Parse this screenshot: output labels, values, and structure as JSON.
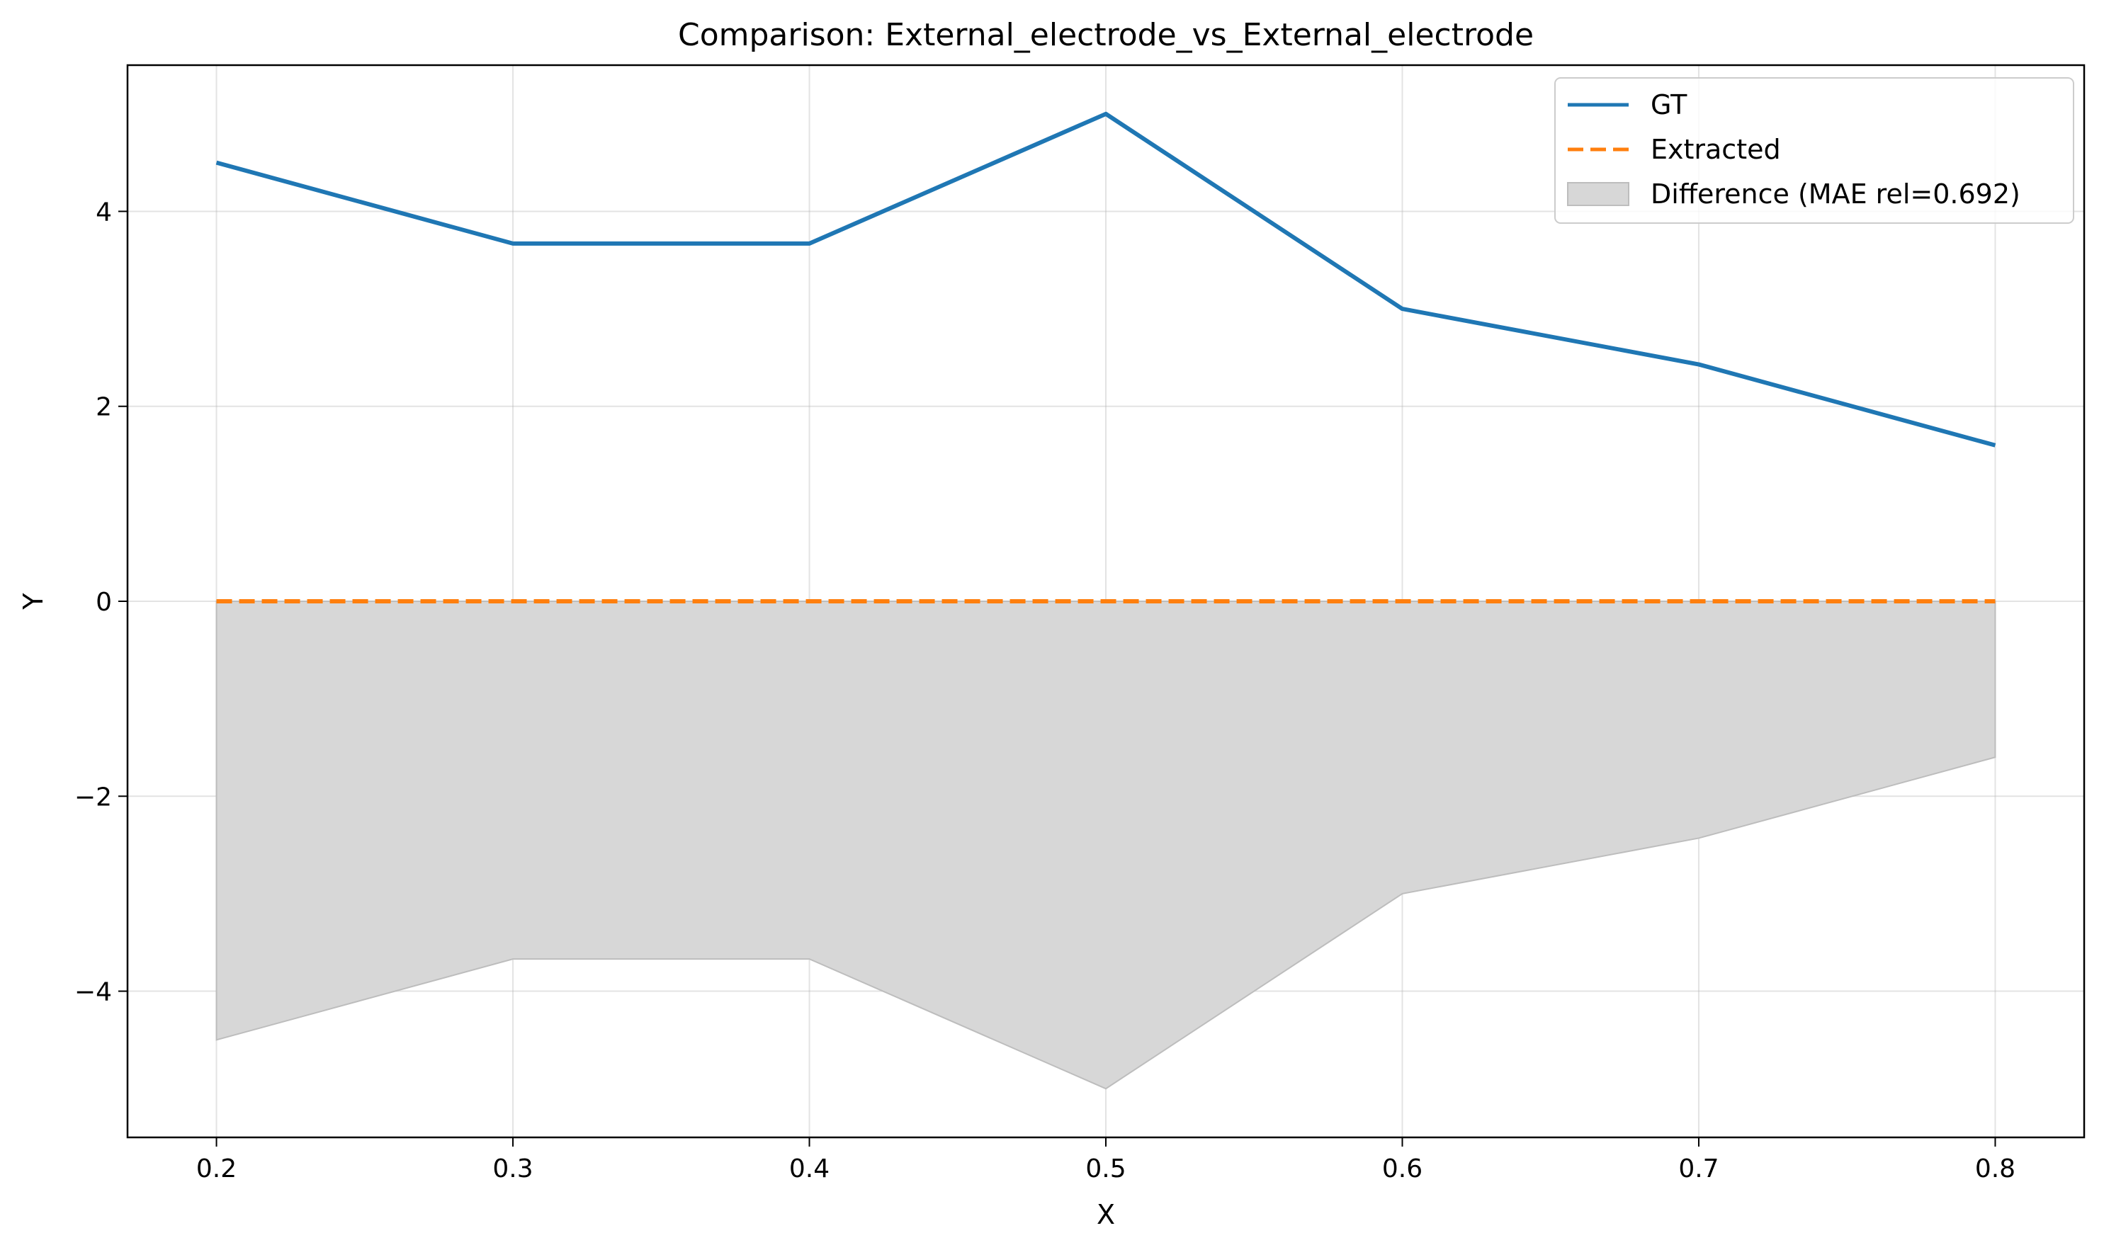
{
  "chart_data": {
    "type": "line",
    "title": "Comparison: External_electrode_vs_External_electrode",
    "xlabel": "X",
    "ylabel": "Y",
    "x": [
      0.2,
      0.3,
      0.4,
      0.5,
      0.6,
      0.7,
      0.8
    ],
    "xlim": [
      0.17,
      0.83
    ],
    "ylim": [
      -5.5,
      5.5
    ],
    "xticks": [
      0.2,
      0.3,
      0.4,
      0.5,
      0.6,
      0.7,
      0.8
    ],
    "xtick_labels": [
      "0.2",
      "0.3",
      "0.4",
      "0.5",
      "0.6",
      "0.7",
      "0.8"
    ],
    "yticks": [
      -4,
      -2,
      0,
      2,
      4
    ],
    "ytick_labels": [
      "−4",
      "−2",
      "0",
      "2",
      "4"
    ],
    "grid": true,
    "legend_position": "top-right",
    "series": [
      {
        "name": "GT",
        "style": "solid",
        "color": "#1f77b4",
        "values": [
          4.5,
          3.67,
          3.67,
          5.0,
          3.0,
          2.43,
          1.6
        ]
      },
      {
        "name": "Extracted",
        "style": "dashed",
        "color": "#ff7f0e",
        "values": [
          0,
          0,
          0,
          0,
          0,
          0,
          0
        ]
      }
    ],
    "fill": {
      "name": "Difference (MAE rel=0.692)",
      "color": "#d7d7d7",
      "edge_color": "#bdbdbd",
      "upper": [
        0,
        0,
        0,
        0,
        0,
        0,
        0
      ],
      "lower": [
        -4.5,
        -3.67,
        -3.67,
        -5.0,
        -3.0,
        -2.43,
        -1.6
      ]
    }
  }
}
